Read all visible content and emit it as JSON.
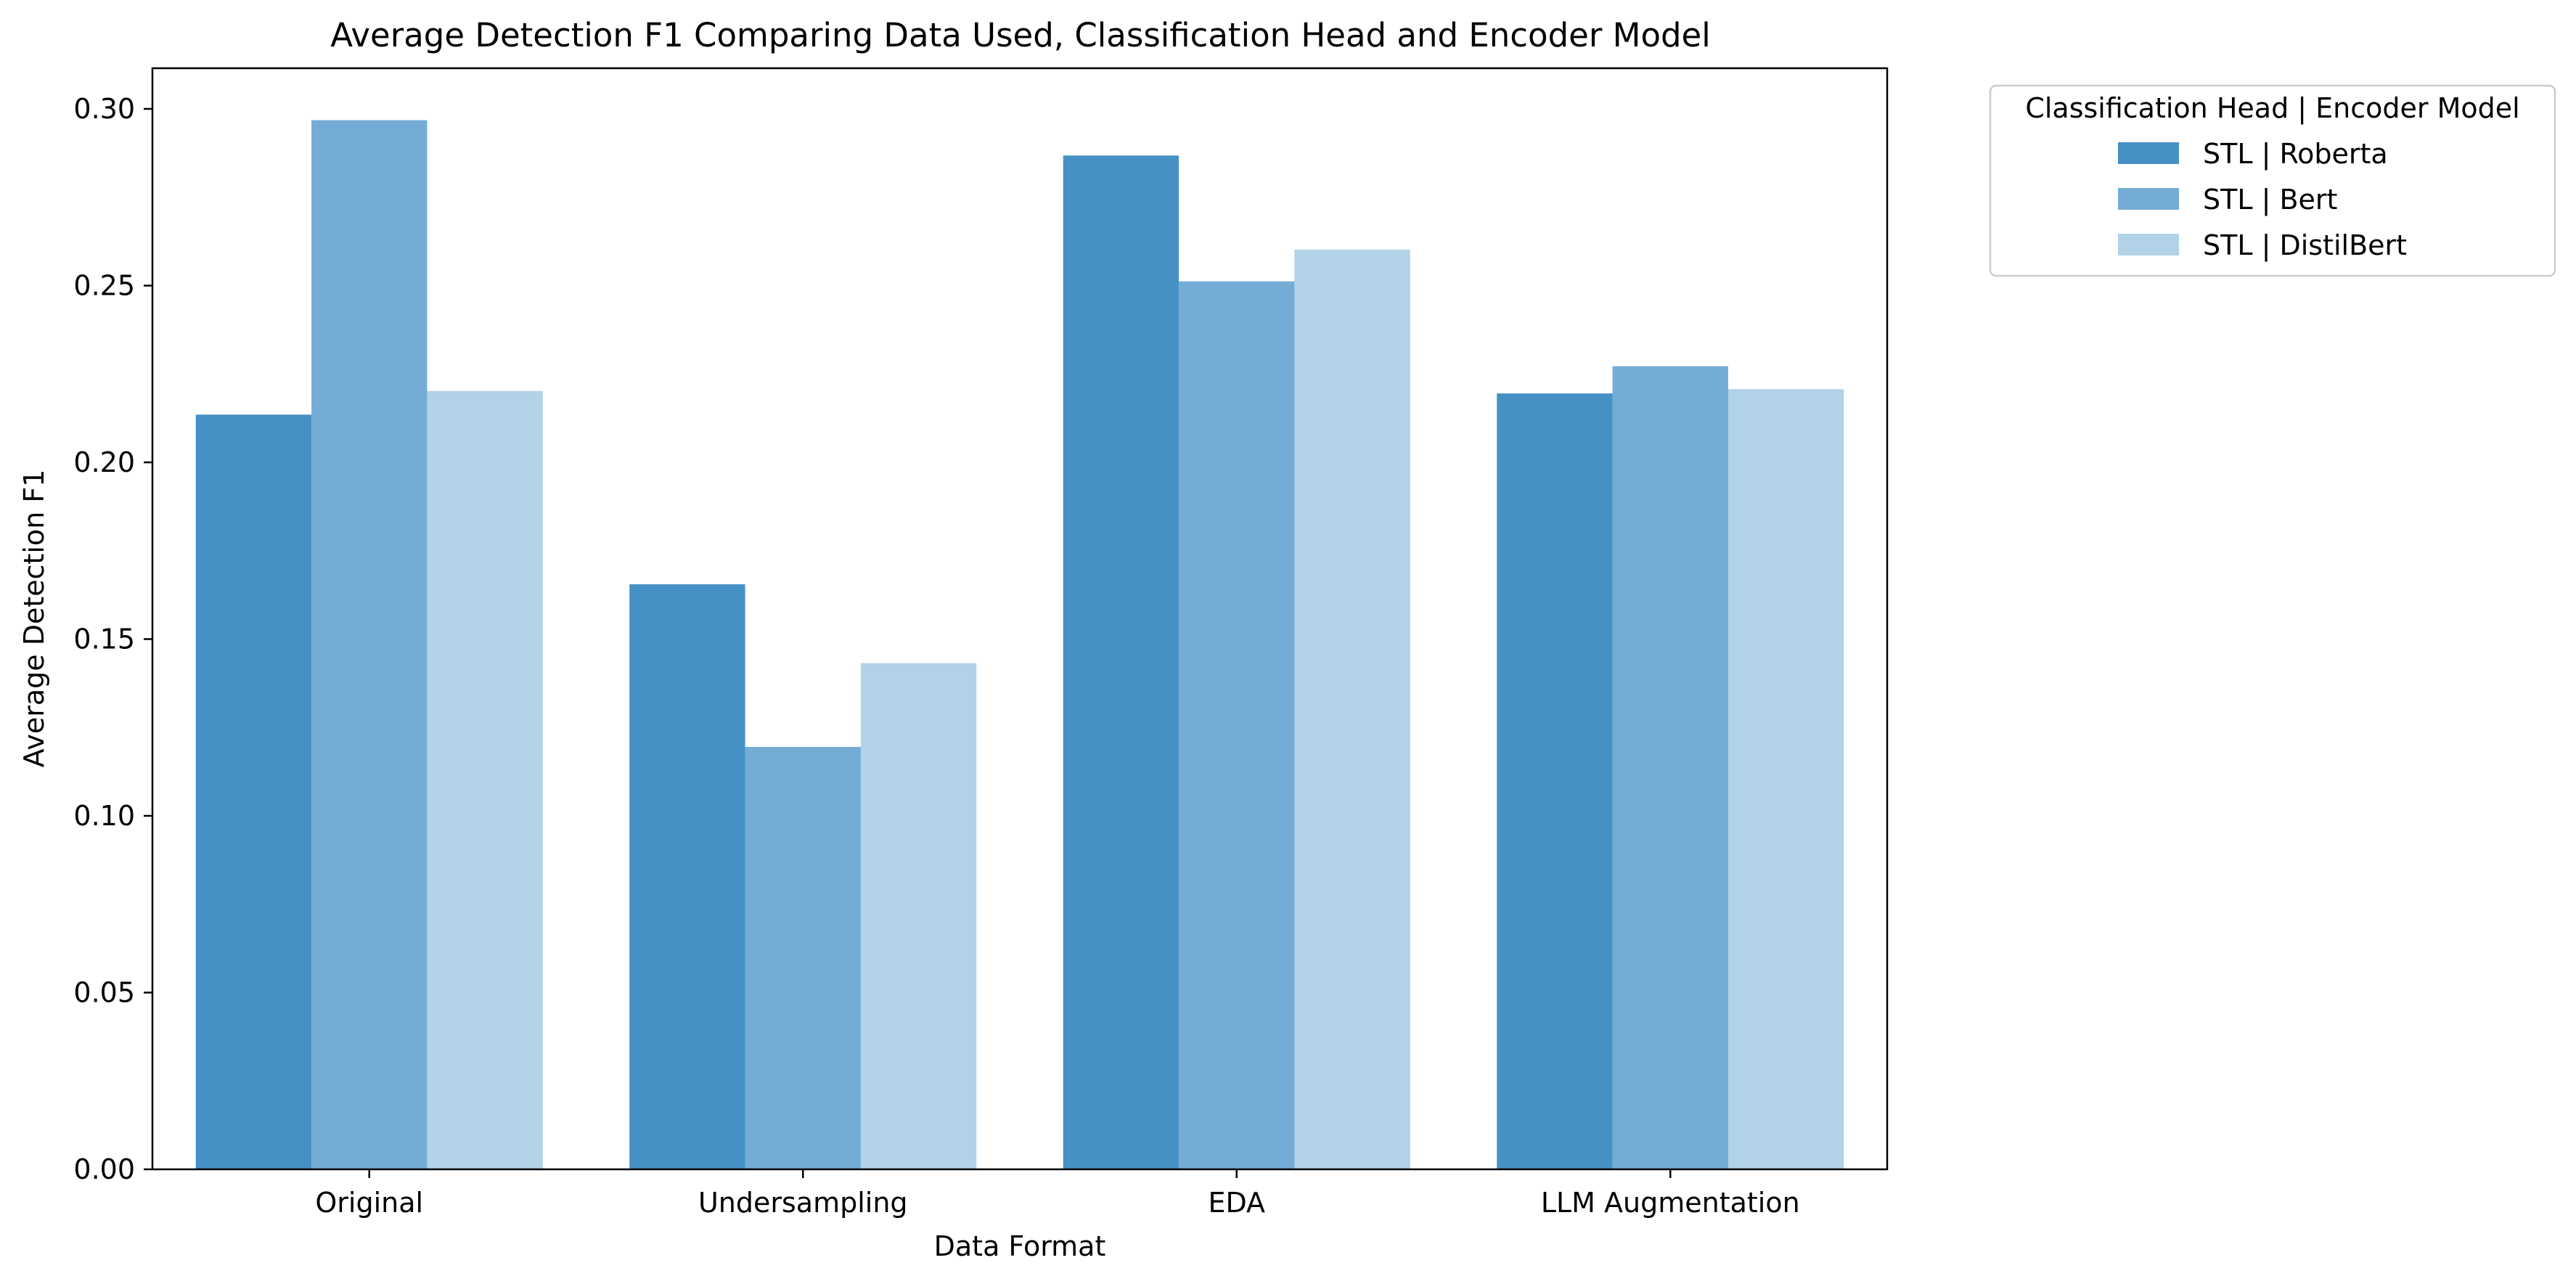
{
  "chart_data": {
    "type": "bar",
    "title": "Average Detection F1 Comparing Data Used, Classification Head and Encoder Model",
    "xlabel": "Data Format",
    "ylabel": "Average Detection F1",
    "categories": [
      "Original",
      "Undersampling",
      "EDA",
      "LLM Augmentation"
    ],
    "series": [
      {
        "name": "STL | Roberta",
        "color": "#4591c6",
        "values": [
          0.2135,
          0.1655,
          0.2868,
          0.2195
        ]
      },
      {
        "name": "STL | Bert",
        "color": "#74acd5",
        "values": [
          0.2968,
          0.1195,
          0.2512,
          0.2272
        ]
      },
      {
        "name": "STL | DistilBert",
        "color": "#b2d2e8",
        "values": [
          0.2202,
          0.1432,
          0.2602,
          0.2207
        ]
      }
    ],
    "ylim": [
      0,
      0.3115
    ],
    "yticks": [
      0.0,
      0.05,
      0.1,
      0.15,
      0.2,
      0.25,
      0.3
    ],
    "ytick_labels": [
      "0.00",
      "0.05",
      "0.10",
      "0.15",
      "0.20",
      "0.25",
      "0.30"
    ],
    "legend": {
      "title": "Classification Head | Encoder Model",
      "placement": "outside-top-right"
    },
    "grid": false
  }
}
